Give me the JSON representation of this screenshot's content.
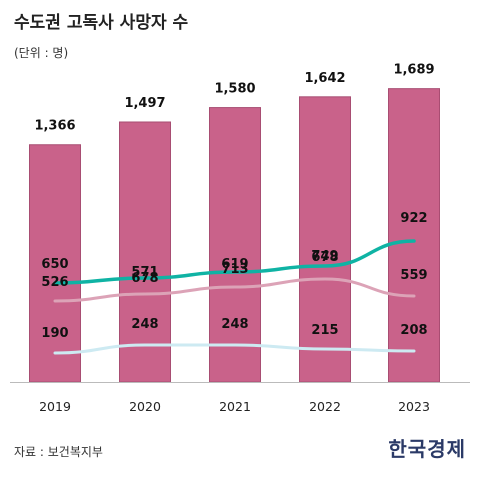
{
  "title": "수도권 고독사 사망자 수",
  "unit_label": "(단위 : 명)",
  "source": "자료 : 보건복지부",
  "publisher_logo": "한국경제",
  "colors": {
    "bar": "#c9628a",
    "bar_edge": "#a84d72",
    "series_total": "#c9628a",
    "series_gyeonggi": "#0fb3a4",
    "series_seoul": "#dca3b7",
    "series_incheon": "#cdeaf2"
  },
  "chart_data": {
    "type": "bar",
    "categories": [
      "2019",
      "2020",
      "2021",
      "2022",
      "2023"
    ],
    "series": [
      {
        "key": "total",
        "type": "bar",
        "values": [
          1366,
          1497,
          1580,
          1642,
          1689
        ]
      },
      {
        "key": "gyeonggi",
        "type": "line",
        "values": [
          526,
          571,
          619,
          678,
          922
        ]
      },
      {
        "key": "seoul",
        "type": "line",
        "values": [
          650,
          678,
          713,
          749,
          559
        ]
      },
      {
        "key": "incheon",
        "type": "line",
        "values": [
          190,
          248,
          248,
          215,
          208
        ]
      }
    ],
    "bar_labels": [
      "1,366",
      "1,497",
      "1,580",
      "1,642",
      "1,689"
    ],
    "line_labels": {
      "gyeonggi": [
        "526",
        "571",
        "619",
        "678",
        "922"
      ],
      "seoul": [
        "650",
        "678",
        "713",
        "749",
        "559"
      ],
      "incheon": [
        "190",
        "248",
        "248",
        "215",
        "208"
      ]
    },
    "bar_ylim": [
      0,
      1900
    ],
    "line_ylim": [
      0,
      1900
    ],
    "grid": false,
    "legend": "none"
  }
}
